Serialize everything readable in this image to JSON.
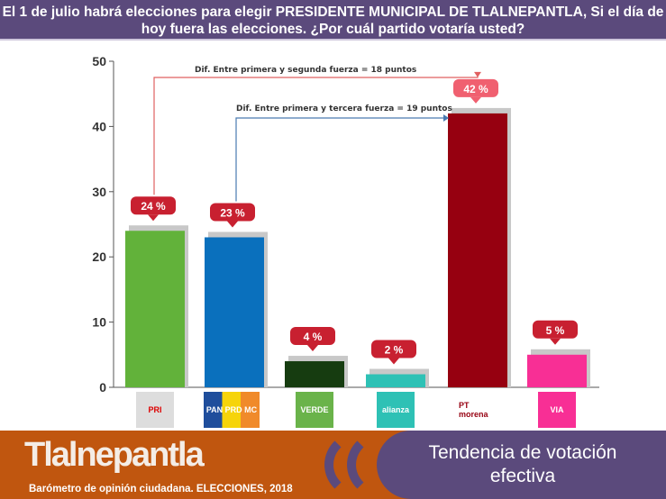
{
  "header": {
    "title": "El 1 de julio habrá elecciones para elegir PRESIDENTE MUNICIPAL DE TLALNEPANTLA, Si el día de hoy fuera las elecciones. ¿Por cuál partido votaría usted?"
  },
  "chart_data": {
    "type": "bar",
    "categories": [
      "PRI",
      "PAN-PRD-MC",
      "VERDE",
      "Nueva Alianza",
      "PT-Morena-PES",
      "VIA Radical"
    ],
    "values": [
      24,
      23,
      4,
      2,
      42,
      5
    ],
    "data_labels": [
      "24 %",
      "23 %",
      "4 %",
      "2 %",
      "42 %",
      "5 %"
    ],
    "colors": [
      "#62b23a",
      "#0a70bd",
      "#163c10",
      "#2ec1b5",
      "#960010",
      "#f82f95"
    ],
    "ylim": [
      0,
      50
    ],
    "yticks": [
      0,
      10,
      20,
      30,
      40,
      50
    ],
    "ytick_labels": [
      "0",
      "10",
      "20",
      "30",
      "40",
      "50"
    ],
    "grid": false,
    "annotations": [
      "Dif. Entre primera y segunda fuerza = 18 puntos",
      "Dif. Entre primera y tercera fuerza = 19 puntos"
    ]
  },
  "logos": [
    "PRI",
    "PAN PRD MC",
    "VERDE",
    "alianza",
    "PT morena",
    "VIA"
  ],
  "footer": {
    "brand": "Tlalnepantla",
    "subtitle": "Barómetro de opinión ciudadana. ELECCIONES, 2018",
    "trend_title": "Tendencia de votación efectiva"
  }
}
